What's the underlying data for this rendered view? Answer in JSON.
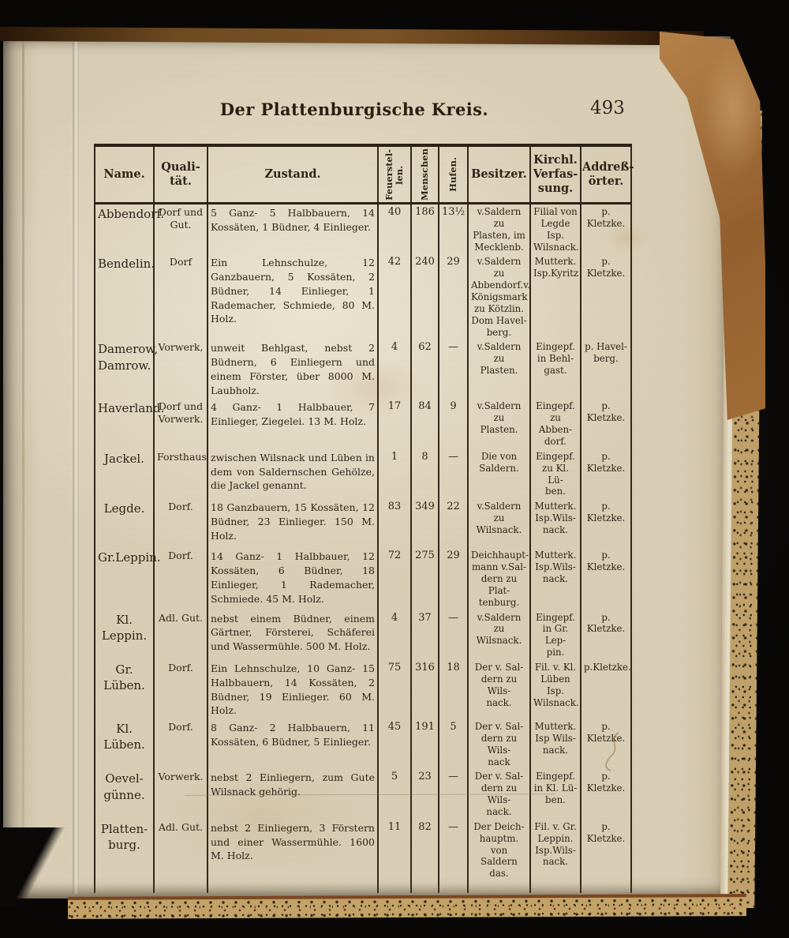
{
  "page": {
    "title": "Der Plattenburgische Kreis.",
    "page_number": "493"
  },
  "table": {
    "columns": [
      {
        "label": "Name."
      },
      {
        "label": "Quali-\ntät."
      },
      {
        "label": "Zustand."
      },
      {
        "label": "Feuerstel-\nlen.",
        "rotated": true
      },
      {
        "label": "Menschen",
        "rotated": true
      },
      {
        "label": "Hufen.",
        "rotated": true
      },
      {
        "label": "Besitzer."
      },
      {
        "label": "Kirchl.\nVerfas-\nsung."
      },
      {
        "label": "Addreß-\nörter."
      }
    ],
    "rows": [
      {
        "name": "Abbendorf.",
        "qualitaet": "Dorf und\nGut.",
        "zustand": "5 Ganz- 5 Halbbauern, 14 Kossäten, 1 Büdner, 4 Einlieger.",
        "feuerstellen": "40",
        "menschen": "186",
        "hufen": "13½",
        "besitzer": "v.Saldern zu\nPlasten, im\nMecklenb.",
        "kirchl_verfassung": "Filial von\nLegde Isp.\nWilsnack.",
        "adressort": "p. Kletzke."
      },
      {
        "name": "Bendelin.",
        "qualitaet": "Dorf",
        "zustand": "Ein Lehnschulze, 12 Ganzbauern, 5 Kossäten, 2 Büdner, 14 Einlieger, 1 Rademacher, Schmiede, 80 M. Holz.",
        "feuerstellen": "42",
        "menschen": "240",
        "hufen": "29",
        "besitzer": "v.Saldern zu\nAbbendorf.v.\nKönigsmark\nzu Kötzlin.\nDom Havel-\nberg.",
        "kirchl_verfassung": "Mutterk.\nIsp.Kyritz",
        "adressort": "p. Kletzke."
      },
      {
        "name": "Damerow,\nDamrow.",
        "qualitaet": "Vorwerk,",
        "zustand": "unweit Behlgast, nebst 2 Büdnern, 6 Einliegern und einem Förster, über 8000 M. Laubholz.",
        "feuerstellen": "4",
        "menschen": "62",
        "hufen": "—",
        "besitzer": "v.Saldern zu\nPlasten.",
        "kirchl_verfassung": "Eingepf.\nin Behl-\ngast.",
        "adressort": "p. Havel-\nberg."
      },
      {
        "name": "Haverland.",
        "qualitaet": "Dorf und\nVorwerk.",
        "zustand": "4 Ganz- 1 Halbbauer, 7 Einlieger, Ziegelei. 13 M. Holz.",
        "feuerstellen": "17",
        "menschen": "84",
        "hufen": "9",
        "besitzer": "v.Saldern zu\nPlasten.",
        "kirchl_verfassung": "Eingepf.\nzu Abben-\ndorf.",
        "adressort": "p. Kletzke."
      },
      {
        "name": "Jackel.",
        "qualitaet": "Forsthaus",
        "zustand": "zwischen Wilsnack und Lüben in dem von Saldernschen Gehölze, die Jackel genannt.",
        "feuerstellen": "1",
        "menschen": "8",
        "hufen": "—",
        "besitzer": "Die von\nSaldern.",
        "kirchl_verfassung": "Eingepf.\nzu Kl. Lü-\nben.",
        "adressort": "p. Kletzke."
      },
      {
        "name": "Legde.",
        "qualitaet": "Dorf.",
        "zustand": "18 Ganzbauern, 15 Kossäten, 12 Büdner, 23 Einlieger. 150 M. Holz.",
        "feuerstellen": "83",
        "menschen": "349",
        "hufen": "22",
        "besitzer": "v.Saldern zu\nWilsnack.",
        "kirchl_verfassung": "Mutterk.\nIsp.Wils-\nnack.",
        "adressort": "p. Kletzke."
      },
      {
        "name": "Gr.Leppin.",
        "qualitaet": "Dorf.",
        "zustand": "14 Ganz- 1 Halbbauer, 12 Kossäten, 6 Büdner, 18 Einlieger, 1 Rademacher, Schmiede. 45 M. Holz.",
        "feuerstellen": "72",
        "menschen": "275",
        "hufen": "29",
        "besitzer": "Deichhaupt-\nmann v.Sal-\ndern zu Plat-\ntenburg.",
        "kirchl_verfassung": "Mutterk.\nIsp.Wils-\nnack.",
        "adressort": "p. Kletzke."
      },
      {
        "name": "Kl. Leppin.",
        "qualitaet": "Adl. Gut.",
        "zustand": "nebst einem Büdner, einem Gärtner, Försterei, Schäferei und Wassermühle. 500 M. Holz.",
        "feuerstellen": "4",
        "menschen": "37",
        "hufen": "—",
        "besitzer": "v.Saldern zu\nWilsnack.",
        "kirchl_verfassung": "Eingepf.\nin Gr. Lep-\npin.",
        "adressort": "p. Kletzke."
      },
      {
        "name": "Gr. Lüben.",
        "qualitaet": "Dorf.",
        "zustand": "Ein Lehnschulze, 10 Ganz- 15 Halbbauern, 14 Kossäten, 2 Büdner, 19 Einlieger. 60 M. Holz.",
        "feuerstellen": "75",
        "menschen": "316",
        "hufen": "18",
        "besitzer": "Der v. Sal-\ndern zu Wils-\nnack.",
        "kirchl_verfassung": "Fil. v. Kl.\nLüben Isp.\nWilsnack.",
        "adressort": "p.Kletzke."
      },
      {
        "name": "Kl. Lüben.",
        "qualitaet": "Dorf.",
        "zustand": "8 Ganz- 2 Halbbauern, 11 Kossäten, 6 Büdner, 5 Einlieger.",
        "feuerstellen": "45",
        "menschen": "191",
        "hufen": "5",
        "besitzer": "Der v. Sal-\ndern zu Wils-\nnack",
        "kirchl_verfassung": "Mutterk.\nIsp Wils-\nnack.",
        "adressort": "p. Kletzke."
      },
      {
        "name": "Oevel-\ngünne.",
        "qualitaet": "Vorwerk.",
        "zustand": "nebst 2 Einliegern, zum Gute Wilsnack gehörig.",
        "feuerstellen": "5",
        "menschen": "23",
        "hufen": "—",
        "besitzer": "Der v. Sal-\ndern zu Wils-\nnack.",
        "kirchl_verfassung": "Eingepf.\nin Kl. Lü-\nben.",
        "adressort": "p. Kletzke."
      },
      {
        "name": "Platten-\nburg.",
        "qualitaet": "Adl. Gut.",
        "zustand": "nebst 2 Einliegern, 3 Förstern und einer Wassermühle. 1600 M. Holz.",
        "feuerstellen": "11",
        "menschen": "82",
        "hufen": "—",
        "besitzer": "Der Deich-\nhauptm. von\nSaldern das.",
        "kirchl_verfassung": "Fil. v. Gr.\nLeppin.\nIsp.Wils-\nnack.",
        "adressort": "p. Kletzke."
      }
    ]
  }
}
